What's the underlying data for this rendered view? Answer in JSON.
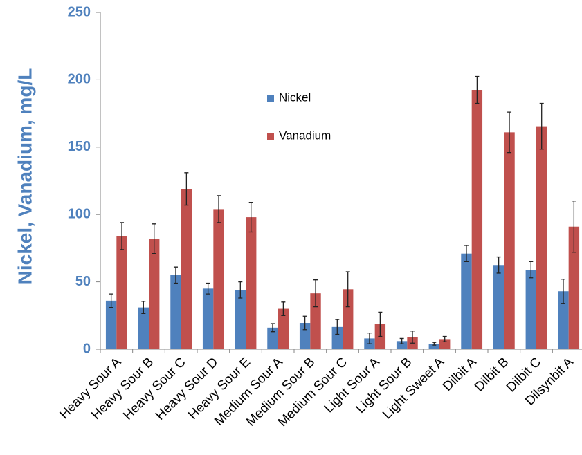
{
  "chart_data": {
    "type": "bar",
    "y_label": "Nickel, Vanadium, mg/L",
    "categories": [
      "Heavy Sour A",
      "Heavy Sour B",
      "Heavy Sour C",
      "Heavy Sour D",
      "Heavy Sour E",
      "Medium Sour A",
      "Medium Sour B",
      "Medium Sour C",
      "Light Sour A",
      "Light Sour B",
      "Light Sweet A",
      "Dilbit A",
      "Dilbit B",
      "Dilbit C",
      "Dilsynbit A"
    ],
    "series": [
      {
        "name": "Nickel",
        "color": "#4f81bd",
        "values": [
          36,
          31,
          55,
          45,
          44,
          16,
          19.5,
          16.5,
          8,
          6,
          4,
          71,
          62.5,
          59,
          43
        ],
        "errors": [
          5,
          4.5,
          6,
          4,
          6,
          3,
          5,
          5.5,
          4,
          2,
          1,
          6,
          6,
          6,
          9
        ]
      },
      {
        "name": "Vanadium",
        "color": "#c0504d",
        "values": [
          84,
          82,
          119,
          104,
          98,
          30,
          41.5,
          44.5,
          18.5,
          9,
          7.5,
          192.5,
          161,
          165.5,
          91
        ],
        "errors": [
          10,
          11,
          12,
          10,
          11,
          5,
          10,
          13,
          9,
          4.5,
          2,
          10,
          15,
          17,
          19
        ]
      }
    ],
    "ylim": [
      0,
      250
    ],
    "yticks": [
      0,
      50,
      100,
      150,
      200,
      250
    ],
    "grid": false
  }
}
